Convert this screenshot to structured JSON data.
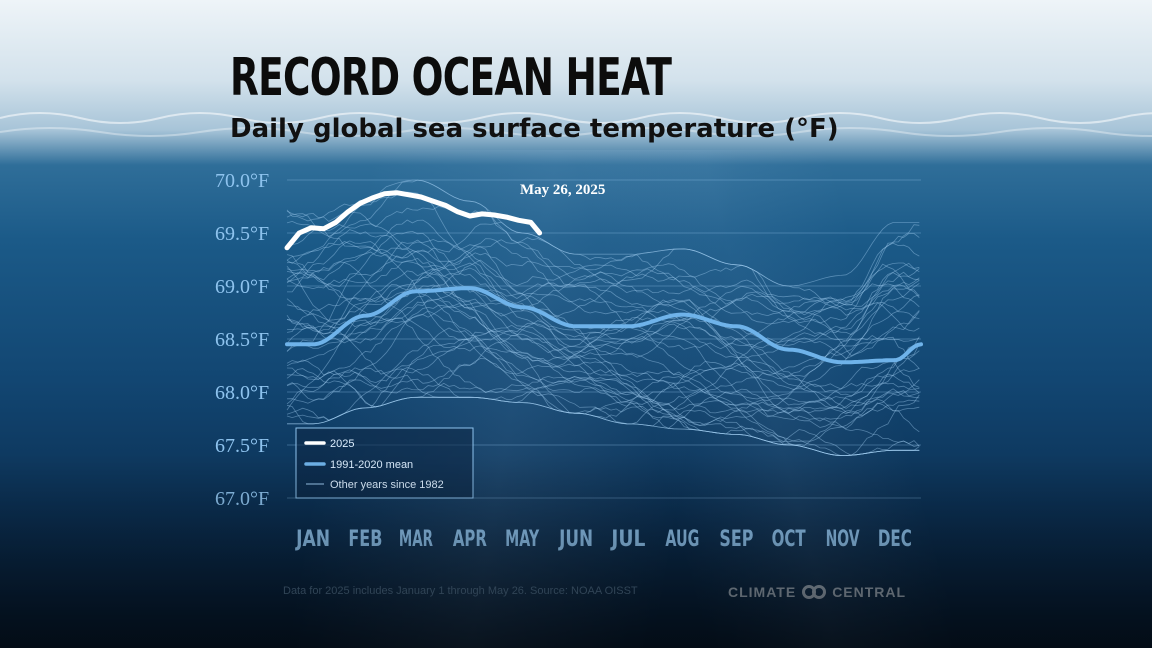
{
  "header": {
    "title": "RECORD OCEAN HEAT",
    "subtitle": "Daily global sea surface temperature (°F)"
  },
  "footer": {
    "footnote": "Data for 2025 includes January 1 through May 26. Source: NOAA OISST",
    "logo_left": "CLIMATE",
    "logo_right": "CENTRAL"
  },
  "colors": {
    "highlight": "#ffffff",
    "mean": "#6fb3ea",
    "other_years": "#9fcbf0",
    "axis_text": "#8ec3ee"
  },
  "chart_data": {
    "type": "line",
    "title": "Daily global sea surface temperature (°F)",
    "xlabel": "",
    "ylabel": "",
    "ylim": [
      67.0,
      70.0
    ],
    "ytick_values": [
      67.0,
      67.5,
      68.0,
      68.5,
      69.0,
      69.5,
      70.0
    ],
    "ytick_labels": [
      "67.0°F",
      "67.5°F",
      "68.0°F",
      "68.5°F",
      "69.0°F",
      "69.5°F",
      "70.0°F"
    ],
    "months": [
      "JAN",
      "FEB",
      "MAR",
      "APR",
      "MAY",
      "JUN",
      "JUL",
      "AUG",
      "SEP",
      "OCT",
      "NOV",
      "DEC"
    ],
    "annotation": "May 26, 2025",
    "legend": [
      {
        "label": "2025",
        "style": "thick-white"
      },
      {
        "label": "1991-2020 mean",
        "style": "mean"
      },
      {
        "label": "Other years since 1982",
        "style": "thin"
      }
    ],
    "series_2025": {
      "name": "2025",
      "day": [
        1,
        8,
        15,
        22,
        29,
        36,
        43,
        50,
        57,
        64,
        71,
        78,
        85,
        92,
        99,
        106,
        113,
        120,
        127,
        134,
        141,
        146
      ],
      "values": [
        69.36,
        69.5,
        69.55,
        69.54,
        69.6,
        69.7,
        69.78,
        69.83,
        69.87,
        69.88,
        69.86,
        69.84,
        69.8,
        69.76,
        69.7,
        69.66,
        69.68,
        69.67,
        69.65,
        69.62,
        69.6,
        69.5
      ]
    },
    "mean_1991_2020": {
      "name": "1991-2020 mean",
      "month_values": [
        68.45,
        68.72,
        68.95,
        68.98,
        68.8,
        68.62,
        68.62,
        68.73,
        68.62,
        68.4,
        68.28,
        68.3
      ],
      "dec31_value": 68.45
    },
    "other_years": {
      "name": "Other years since 1982",
      "count": 42,
      "range_by_month_min": [
        67.7,
        67.85,
        67.95,
        67.95,
        67.9,
        67.8,
        67.7,
        67.65,
        67.6,
        67.5,
        67.4,
        67.45
      ],
      "range_by_month_max": [
        69.85,
        69.9,
        70.0,
        69.8,
        69.5,
        69.3,
        69.3,
        69.35,
        69.2,
        69.0,
        69.1,
        69.6
      ]
    }
  }
}
